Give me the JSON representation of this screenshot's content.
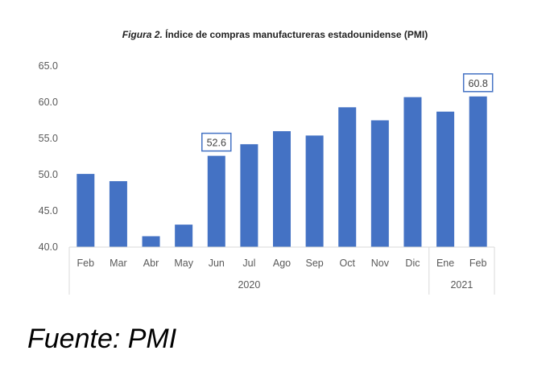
{
  "figure_prefix": "Figura 2.",
  "figure_title": "Índice de compras manufactureras estadounidense (PMI)",
  "source_text": "Fuente: PMI",
  "colors": {
    "bar": "#4472C4",
    "axis": "#D9D9D9",
    "label_box": "#4472C4"
  },
  "chart_data": {
    "type": "bar",
    "title": "Índice de compras manufactureras estadounidense (PMI)",
    "xlabel": "",
    "ylabel": "",
    "ylim": [
      40,
      65
    ],
    "yticks": [
      "40.0",
      "45.0",
      "50.0",
      "55.0",
      "60.0",
      "65.0"
    ],
    "grid": false,
    "categories": [
      "Feb",
      "Mar",
      "Abr",
      "May",
      "Jun",
      "Jul",
      "Ago",
      "Sep",
      "Oct",
      "Nov",
      "Dic",
      "Ene",
      "Feb"
    ],
    "groups": [
      {
        "label": "2020",
        "count": 11
      },
      {
        "label": "2021",
        "count": 2
      }
    ],
    "values": [
      50.1,
      49.1,
      41.5,
      43.1,
      52.6,
      54.2,
      56.0,
      55.4,
      59.3,
      57.5,
      60.7,
      58.7,
      60.8
    ],
    "labeled_points": [
      {
        "index": 4,
        "label": "52.6"
      },
      {
        "index": 12,
        "label": "60.8"
      }
    ]
  }
}
